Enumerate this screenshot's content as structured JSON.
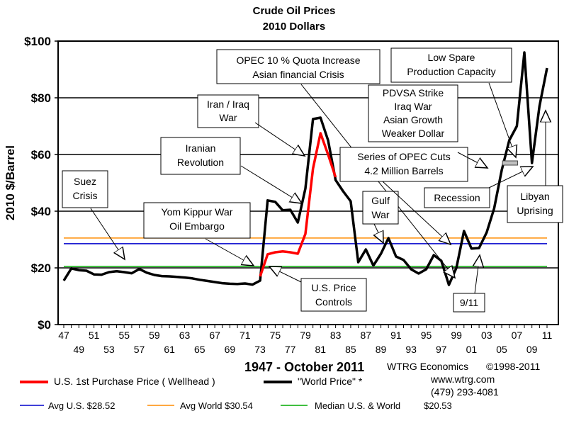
{
  "chart_data": {
    "type": "line",
    "title": "Crude Oil Prices",
    "subtitle": "2010 Dollars",
    "ylabel": "2010 $/Barrel",
    "period_label": "1947 - October 2011",
    "source": "WTRG Economics",
    "copyright": "©1998-2011",
    "website": "www.wtrg.com",
    "phone": "(479) 293-4081",
    "xlim": [
      1947,
      2011
    ],
    "ylim": [
      0,
      100
    ],
    "y_ticks": [
      {
        "value": 0,
        "label": "$0"
      },
      {
        "value": 20,
        "label": "$20"
      },
      {
        "value": 40,
        "label": "$40"
      },
      {
        "value": 60,
        "label": "$60"
      },
      {
        "value": 80,
        "label": "$80"
      },
      {
        "value": 100,
        "label": "$100"
      }
    ],
    "x_ticks_upper": [
      {
        "year": 1947,
        "label": "47"
      },
      {
        "year": 1951,
        "label": "51"
      },
      {
        "year": 1955,
        "label": "55"
      },
      {
        "year": 1959,
        "label": "59"
      },
      {
        "year": 1963,
        "label": "63"
      },
      {
        "year": 1967,
        "label": "67"
      },
      {
        "year": 1971,
        "label": "71"
      },
      {
        "year": 1975,
        "label": "75"
      },
      {
        "year": 1979,
        "label": "79"
      },
      {
        "year": 1983,
        "label": "83"
      },
      {
        "year": 1987,
        "label": "87"
      },
      {
        "year": 1991,
        "label": "91"
      },
      {
        "year": 1995,
        "label": "95"
      },
      {
        "year": 1999,
        "label": "99"
      },
      {
        "year": 2003,
        "label": "03"
      },
      {
        "year": 2007,
        "label": "07"
      },
      {
        "year": 2011,
        "label": "11"
      }
    ],
    "x_ticks_lower": [
      {
        "year": 1949,
        "label": "49"
      },
      {
        "year": 1953,
        "label": "53"
      },
      {
        "year": 1957,
        "label": "57"
      },
      {
        "year": 1961,
        "label": "61"
      },
      {
        "year": 1965,
        "label": "65"
      },
      {
        "year": 1969,
        "label": "69"
      },
      {
        "year": 1973,
        "label": "73"
      },
      {
        "year": 1977,
        "label": "77"
      },
      {
        "year": 1981,
        "label": "81"
      },
      {
        "year": 1985,
        "label": "85"
      },
      {
        "year": 1989,
        "label": "89"
      },
      {
        "year": 1993,
        "label": "93"
      },
      {
        "year": 1997,
        "label": "97"
      },
      {
        "year": 2001,
        "label": "01"
      },
      {
        "year": 2005,
        "label": "05"
      },
      {
        "year": 2009,
        "label": "09"
      }
    ],
    "grid_y": [
      20,
      40,
      60,
      80
    ],
    "series": [
      {
        "name": "\"World Price\" *",
        "color": "#000000",
        "points": [
          [
            1947,
            15.5
          ],
          [
            1948,
            19.8
          ],
          [
            1949,
            19.2
          ],
          [
            1950,
            19.0
          ],
          [
            1951,
            17.7
          ],
          [
            1952,
            17.6
          ],
          [
            1953,
            18.5
          ],
          [
            1954,
            18.8
          ],
          [
            1955,
            18.5
          ],
          [
            1956,
            18.1
          ],
          [
            1957,
            19.6
          ],
          [
            1958,
            18.3
          ],
          [
            1959,
            17.5
          ],
          [
            1960,
            17.1
          ],
          [
            1961,
            17.0
          ],
          [
            1962,
            16.8
          ],
          [
            1963,
            16.6
          ],
          [
            1964,
            16.3
          ],
          [
            1965,
            15.8
          ],
          [
            1966,
            15.4
          ],
          [
            1967,
            15.0
          ],
          [
            1968,
            14.6
          ],
          [
            1969,
            14.4
          ],
          [
            1970,
            14.3
          ],
          [
            1971,
            14.5
          ],
          [
            1972,
            14.1
          ],
          [
            1973,
            15.5
          ],
          [
            1974,
            43.8
          ],
          [
            1975,
            43.3
          ],
          [
            1976,
            40.3
          ],
          [
            1977,
            40.5
          ],
          [
            1978,
            36.0
          ],
          [
            1979,
            48.0
          ],
          [
            1980,
            72.5
          ],
          [
            1981,
            73.0
          ],
          [
            1982,
            65.0
          ],
          [
            1983,
            51.0
          ],
          [
            1984,
            47.0
          ],
          [
            1985,
            43.5
          ],
          [
            1986,
            22.0
          ],
          [
            1987,
            26.5
          ],
          [
            1988,
            20.8
          ],
          [
            1989,
            25.0
          ],
          [
            1990,
            30.5
          ],
          [
            1991,
            24.0
          ],
          [
            1992,
            22.8
          ],
          [
            1993,
            19.5
          ],
          [
            1994,
            18.0
          ],
          [
            1995,
            19.5
          ],
          [
            1996,
            24.5
          ],
          [
            1997,
            22.5
          ],
          [
            1998,
            14.0
          ],
          [
            1999,
            20.0
          ],
          [
            2000,
            33.0
          ],
          [
            2001,
            26.8
          ],
          [
            2002,
            27.0
          ],
          [
            2003,
            32.5
          ],
          [
            2004,
            41.0
          ],
          [
            2005,
            54.5
          ],
          [
            2006,
            65.0
          ],
          [
            2007,
            70.0
          ],
          [
            2008,
            96.0
          ],
          [
            2009,
            57.0
          ],
          [
            2010,
            77.0
          ],
          [
            2011,
            90.5
          ]
        ]
      },
      {
        "name": "U.S. 1st Purchase Price ( Wellhead )",
        "color": "#ff0000",
        "points": [
          [
            1973,
            17.0
          ],
          [
            1974,
            24.8
          ],
          [
            1975,
            25.5
          ],
          [
            1976,
            25.8
          ],
          [
            1977,
            25.5
          ],
          [
            1978,
            25.0
          ],
          [
            1979,
            32.0
          ],
          [
            1980,
            55.0
          ],
          [
            1981,
            67.5
          ],
          [
            1982,
            60.0
          ],
          [
            1983,
            52.0
          ]
        ]
      }
    ],
    "reference_lines": [
      {
        "name": "Avg U.S.",
        "value": 28.52,
        "value_label": "$28.52",
        "color": "#0000cc"
      },
      {
        "name": "Avg World",
        "value": 30.54,
        "value_label": "$30.54",
        "color": "#ff8c00"
      },
      {
        "name": "Median U.S. & World",
        "value": 20.53,
        "value_label": "$20.53",
        "color": "#00aa00"
      }
    ],
    "spare_capacity_marker": {
      "year_start": 2005.1,
      "year_end": 2007.1,
      "value": 57
    },
    "annotations": [
      {
        "id": "suez",
        "lines": [
          "Suez",
          "Crisis"
        ]
      },
      {
        "id": "yom-kippur",
        "lines": [
          "Yom Kippur War",
          "Oil Embargo"
        ]
      },
      {
        "id": "iranian-revolution",
        "lines": [
          "Iranian",
          "Revolution"
        ]
      },
      {
        "id": "iran-iraq",
        "lines": [
          "Iran / Iraq",
          "War"
        ]
      },
      {
        "id": "opec-quota",
        "lines": [
          "OPEC 10 % Quota Increase",
          "Asian financial Crisis"
        ]
      },
      {
        "id": "us-price-controls",
        "lines": [
          "U.S. Price",
          "Controls"
        ]
      },
      {
        "id": "gulf-war",
        "lines": [
          "Gulf",
          "War"
        ]
      },
      {
        "id": "opec-cuts",
        "lines": [
          "Series of OPEC Cuts",
          "4.2 Million Barrels"
        ]
      },
      {
        "id": "pdvsa",
        "lines": [
          "PDVSA Strike",
          "Iraq War",
          "Asian Growth",
          "Weaker Dollar"
        ]
      },
      {
        "id": "low-spare",
        "lines": [
          "Low Spare",
          "Production Capacity"
        ]
      },
      {
        "id": "recession",
        "lines": [
          "Recession"
        ]
      },
      {
        "id": "libyan",
        "lines": [
          "Libyan",
          "Uprising"
        ]
      },
      {
        "id": "nine-eleven",
        "lines": [
          "9/11"
        ]
      }
    ],
    "legend": {
      "us_label": "U.S. 1st Purchase Price ( Wellhead )",
      "world_label": "\"World Price\" *",
      "avg_us_label": "Avg U.S. $28.52",
      "avg_world_label": "Avg World $30.54",
      "median_label": "Median U.S. & World",
      "median_value": "$20.53"
    }
  }
}
